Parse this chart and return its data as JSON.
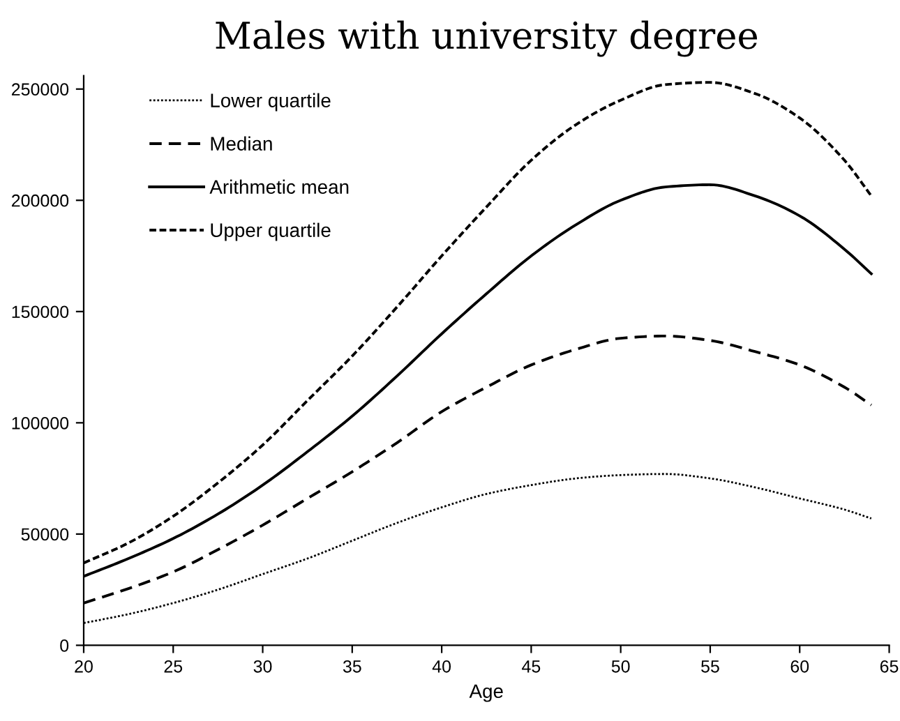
{
  "chart_data": {
    "type": "line",
    "title": "Males with university degree",
    "xlabel": "Age",
    "x": [
      20,
      22.5,
      25,
      27.5,
      30,
      32.5,
      35,
      37.5,
      40,
      42.5,
      45,
      47.5,
      50,
      52.5,
      55,
      57.5,
      60,
      62.5,
      64
    ],
    "series": [
      {
        "name": "Lower quartile",
        "color": "#000000",
        "line_style": "dotted",
        "values": [
          10000,
          14000,
          19000,
          25000,
          32000,
          39000,
          47000,
          55000,
          62000,
          68000,
          72000,
          75000,
          76500,
          77000,
          75000,
          71000,
          66000,
          61000,
          57000
        ]
      },
      {
        "name": "Median",
        "color": "#000000",
        "line_style": "dashed",
        "values": [
          19000,
          25500,
          33000,
          43000,
          54000,
          66000,
          78000,
          91000,
          105000,
          116000,
          126000,
          133000,
          138000,
          139000,
          137000,
          132000,
          126000,
          116000,
          108000
        ]
      },
      {
        "name": "Arithmetic mean",
        "color": "#000000",
        "line_style": "solid",
        "values": [
          31000,
          39000,
          48000,
          59000,
          72000,
          87000,
          103000,
          121000,
          140000,
          158000,
          175000,
          189000,
          200000,
          206000,
          207000,
          202000,
          193000,
          178000,
          167000
        ]
      },
      {
        "name": "Upper quartile",
        "color": "#000000",
        "line_style": "dashed",
        "values": [
          37000,
          46000,
          58000,
          73000,
          90000,
          110000,
          130000,
          152000,
          175000,
          197000,
          218000,
          234000,
          245000,
          252000,
          253000,
          248000,
          237000,
          218000,
          202000
        ]
      }
    ],
    "xlim": [
      20,
      65
    ],
    "xticks": [
      20,
      25,
      30,
      35,
      40,
      45,
      50,
      55,
      60,
      65
    ],
    "ylim": [
      0,
      256000
    ],
    "yticks": [
      0,
      50000,
      100000,
      150000,
      200000,
      250000
    ],
    "grid": false,
    "legend": "top left",
    "marker": "none"
  }
}
